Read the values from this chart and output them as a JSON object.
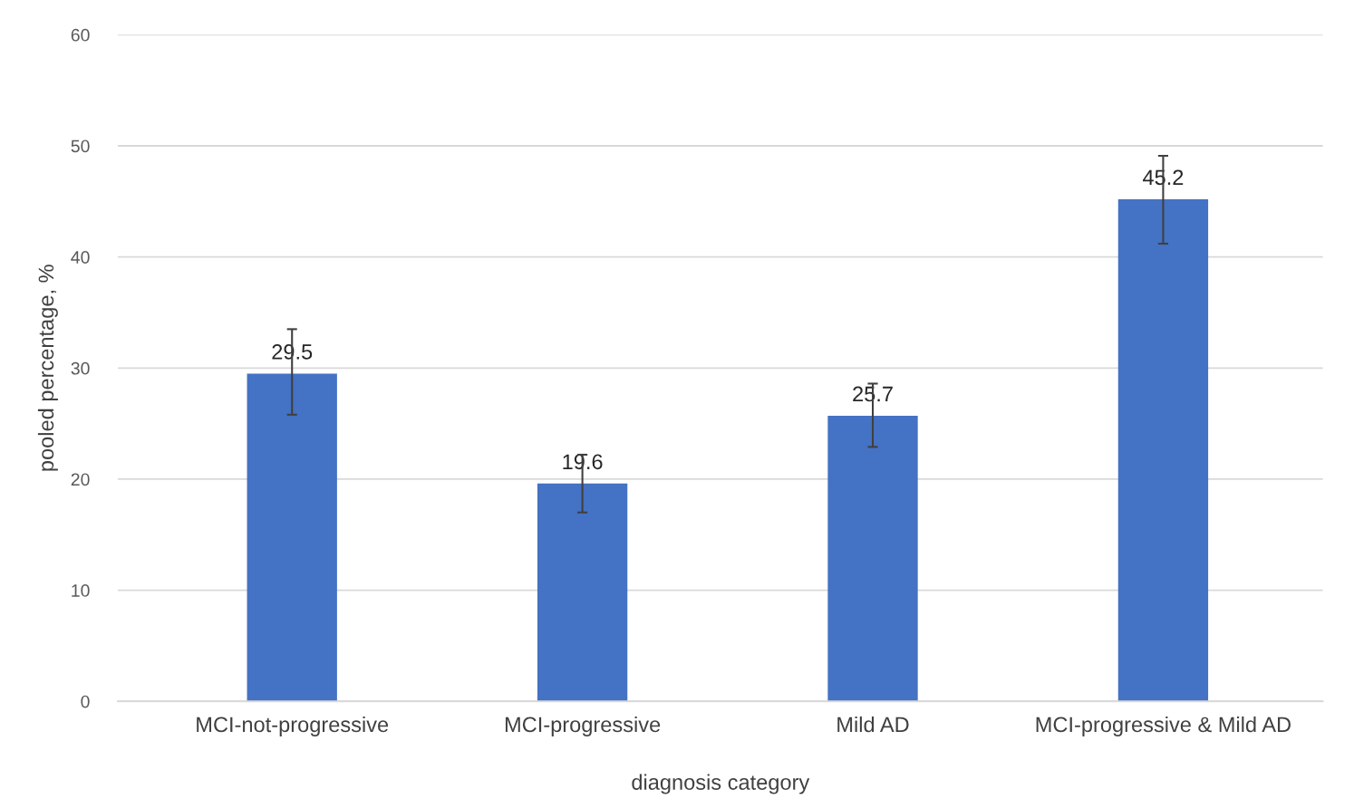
{
  "chart_data": {
    "type": "bar",
    "xlabel": "diagnosis category",
    "ylabel": "pooled percentage, %",
    "categories": [
      "MCI-not-progressive",
      "MCI-progressive",
      "Mild AD",
      "MCI-progressive & Mild AD"
    ],
    "values": [
      29.5,
      19.6,
      25.7,
      45.2
    ],
    "color": "#4472c4",
    "errors": [
      [
        25.8,
        33.5
      ],
      [
        17.0,
        22.2
      ],
      [
        22.9,
        28.6
      ],
      [
        41.2,
        49.1
      ]
    ],
    "data_labels": true,
    "ylim": [
      0,
      60
    ],
    "yticks": [
      0,
      10,
      20,
      30,
      40,
      50,
      60
    ],
    "grid": "y"
  }
}
